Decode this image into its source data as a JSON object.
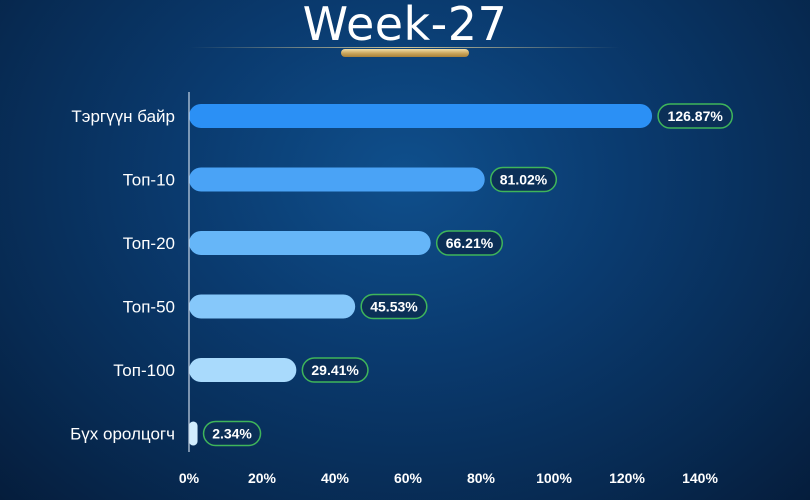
{
  "title": "Week-27",
  "chart_data": {
    "type": "bar",
    "orientation": "horizontal",
    "title": "Week-27",
    "categories": [
      "Тэргүүн байр",
      "Топ-10",
      "Топ-20",
      "Топ-50",
      "Топ-100",
      "Бүх оролцогч"
    ],
    "values": [
      126.87,
      81.02,
      66.21,
      45.53,
      29.41,
      2.34
    ],
    "value_labels": [
      "126.87%",
      "81.02%",
      "66.21%",
      "45.53%",
      "29.41%",
      "2.34%"
    ],
    "xlim": [
      0,
      140
    ],
    "x_ticks": [
      "0%",
      "20%",
      "40%",
      "60%",
      "80%",
      "100%",
      "120%",
      "140%"
    ],
    "xlabel": "",
    "ylabel": "",
    "grid": false,
    "colors": [
      "#2b90f5",
      "#4aa3f6",
      "#66b6f8",
      "#86c8fa",
      "#a9dafc",
      "#d2eefe"
    ],
    "label_border_color": "#3fb55a"
  }
}
